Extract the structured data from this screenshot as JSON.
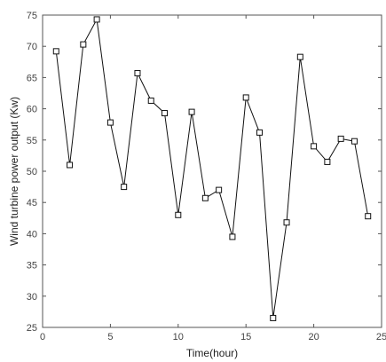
{
  "chart_data": {
    "type": "line",
    "xlabel": "Time(hour)",
    "ylabel": "Wind turbine power output (Kw)",
    "xlim": [
      0,
      25
    ],
    "ylim": [
      25,
      75
    ],
    "xticks": [
      "0",
      "5",
      "10",
      "15",
      "20",
      "25"
    ],
    "yticks": [
      "25",
      "30",
      "35",
      "40",
      "45",
      "50",
      "55",
      "60",
      "65",
      "70",
      "75"
    ],
    "grid": false,
    "marker": "square",
    "line_color": "#111111",
    "series": [
      {
        "x": [
          1,
          2,
          3,
          4,
          5,
          6,
          7,
          8,
          9,
          10,
          11,
          12,
          13,
          14,
          15,
          16,
          17,
          18,
          19,
          20,
          21,
          22,
          23,
          24
        ],
        "values": [
          69.2,
          51.0,
          70.3,
          74.3,
          57.8,
          47.5,
          65.7,
          61.3,
          59.3,
          43.0,
          59.5,
          45.7,
          47.0,
          39.5,
          61.8,
          56.2,
          26.5,
          41.8,
          68.3,
          54.0,
          51.5,
          55.2,
          54.8,
          42.8
        ]
      }
    ]
  }
}
